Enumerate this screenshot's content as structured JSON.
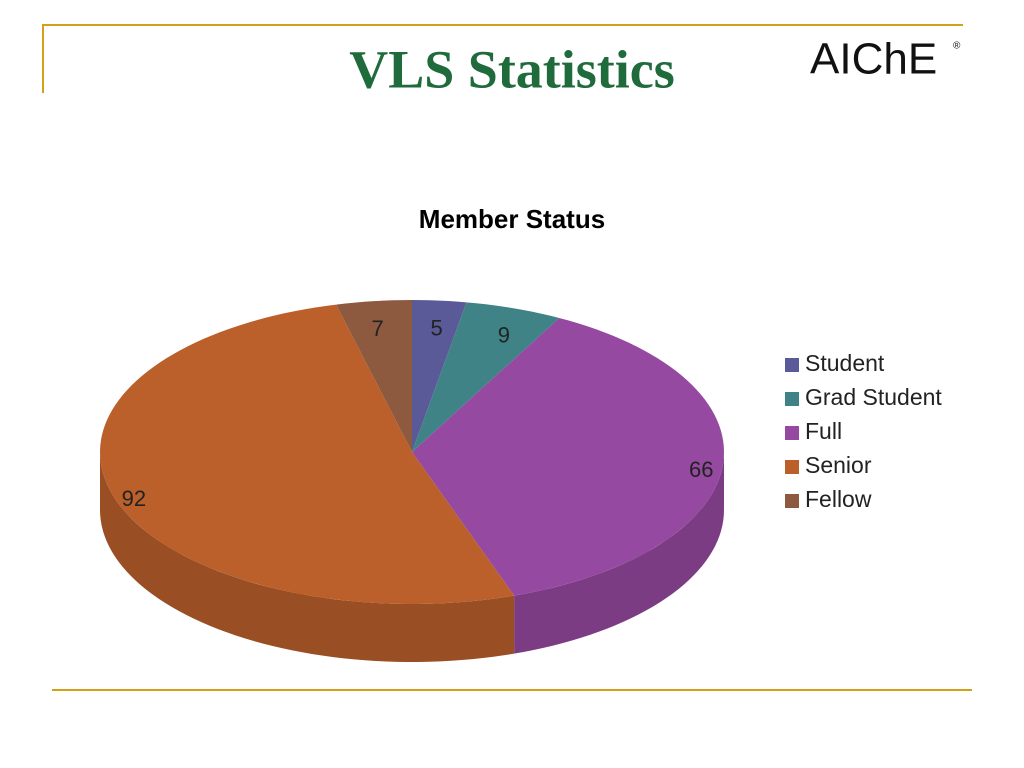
{
  "slide": {
    "title": "VLS Statistics",
    "logo": "AIChE",
    "logo_mark": "®"
  },
  "chart_data": {
    "type": "pie",
    "title": "Member Status",
    "categories": [
      "Student",
      "Grad Student",
      "Full",
      "Senior",
      "Fellow"
    ],
    "values": [
      5,
      9,
      66,
      92,
      7
    ],
    "colors": [
      "#5b5a98",
      "#3f8386",
      "#9649a0",
      "#bb5f2b",
      "#8e5a3f"
    ],
    "legend": "right"
  }
}
